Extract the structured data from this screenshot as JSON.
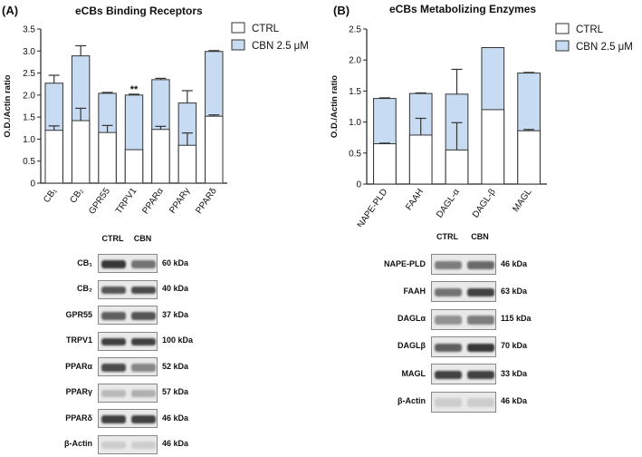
{
  "panel_a": {
    "label": "(A)",
    "title": "eCBs Binding Receptors"
  },
  "panel_b": {
    "label": "(B)",
    "title": "eCBs Metabolizing Enzymes"
  },
  "legend": {
    "ctrl": "CTRL",
    "cbn": "CBN 2.5 μM"
  },
  "colors": {
    "ctrl": "#ffffff",
    "cbn": "#c7dcf2",
    "outline": "#333333"
  },
  "chart_data": [
    {
      "type": "bar",
      "title": "eCBs Binding Receptors",
      "ylabel": "O.D./Actin ratio",
      "ylim": [
        0,
        3.5
      ],
      "yticks": [
        "0",
        "0.5",
        "1.0",
        "1.5",
        "2.0",
        "2.5",
        "3.0",
        "3.5"
      ],
      "categories": [
        "CB₁",
        "CB₂",
        "GPR55",
        "TRPV1",
        "PPARα",
        "PPARγ",
        "PPARδ"
      ],
      "series": [
        {
          "name": "CTRL",
          "values": [
            1.2,
            1.42,
            1.15,
            0.76,
            1.22,
            0.86,
            1.52
          ],
          "errors": [
            0.1,
            0.28,
            0.16,
            0.0,
            0.07,
            0.28,
            0.03
          ]
        },
        {
          "name": "CBN 2.5 μM",
          "values": [
            2.27,
            2.89,
            2.04,
            2.0,
            2.35,
            1.82,
            2.99
          ],
          "errors": [
            0.18,
            0.23,
            0.02,
            0.02,
            0.03,
            0.28,
            0.02
          ]
        }
      ],
      "annotations": [
        {
          "category": "TRPV1",
          "text": "**"
        }
      ],
      "legend": "top-right",
      "grid": false
    },
    {
      "type": "bar",
      "title": "eCBs Metabolizing Enzymes",
      "ylabel": "O.D./Actin ratio",
      "ylim": [
        0,
        2.5
      ],
      "yticks": [
        "0",
        "0.5",
        "1.0",
        "1.5",
        "2.0",
        "2.5"
      ],
      "categories": [
        "NAPE-PLD",
        "FAAH",
        "DAGL-α",
        "DAGL-β",
        "MAGL"
      ],
      "series": [
        {
          "name": "CTRL",
          "values": [
            0.65,
            0.79,
            0.55,
            1.2,
            0.86
          ],
          "errors": [
            0.01,
            0.27,
            0.44,
            0.0,
            0.02
          ]
        },
        {
          "name": "CBN 2.5 μM",
          "values": [
            1.38,
            1.46,
            1.45,
            2.2,
            1.79
          ],
          "errors": [
            0.01,
            0.01,
            0.4,
            0.0,
            0.01
          ]
        }
      ],
      "legend": "top-right",
      "grid": false
    }
  ],
  "blot_a": {
    "headers": [
      "CTRL",
      "CBN"
    ],
    "rows": [
      {
        "label": "CB₁",
        "kda": "60 kDa",
        "band": [
          0.9,
          0.6
        ]
      },
      {
        "label": "CB₂",
        "kda": "40 kDa",
        "band": [
          0.75,
          0.8
        ]
      },
      {
        "label": "GPR55",
        "kda": "37 kDa",
        "band": [
          0.7,
          0.75
        ]
      },
      {
        "label": "TRPV1",
        "kda": "100 kDa",
        "band": [
          0.85,
          0.85
        ]
      },
      {
        "label": "PPARα",
        "kda": "52 kDa",
        "band": [
          0.8,
          0.5
        ]
      },
      {
        "label": "PPARγ",
        "kda": "57 kDa",
        "band": [
          0.25,
          0.3
        ]
      },
      {
        "label": "PPARδ",
        "kda": "46 kDa",
        "band": [
          0.85,
          0.85
        ]
      },
      {
        "label": "β-Actin",
        "kda": "46 kDa",
        "band": [
          0.15,
          0.15
        ]
      }
    ]
  },
  "blot_b": {
    "headers": [
      "CTRL",
      "CBN"
    ],
    "rows": [
      {
        "label": "NAPE-PLD",
        "kda": "46 kDa",
        "band": [
          0.55,
          0.65
        ]
      },
      {
        "label": "FAAH",
        "kda": "63 kDa",
        "band": [
          0.6,
          0.85
        ]
      },
      {
        "label": "DAGLα",
        "kda": "115 kDa",
        "band": [
          0.45,
          0.55
        ]
      },
      {
        "label": "DAGLβ",
        "kda": "70 kDa",
        "band": [
          0.7,
          0.9
        ]
      },
      {
        "label": "MAGL",
        "kda": "33 kDa",
        "band": [
          0.85,
          0.85
        ]
      },
      {
        "label": "β-Actin",
        "kda": "46 kDa",
        "band": [
          0.15,
          0.15
        ]
      }
    ]
  }
}
